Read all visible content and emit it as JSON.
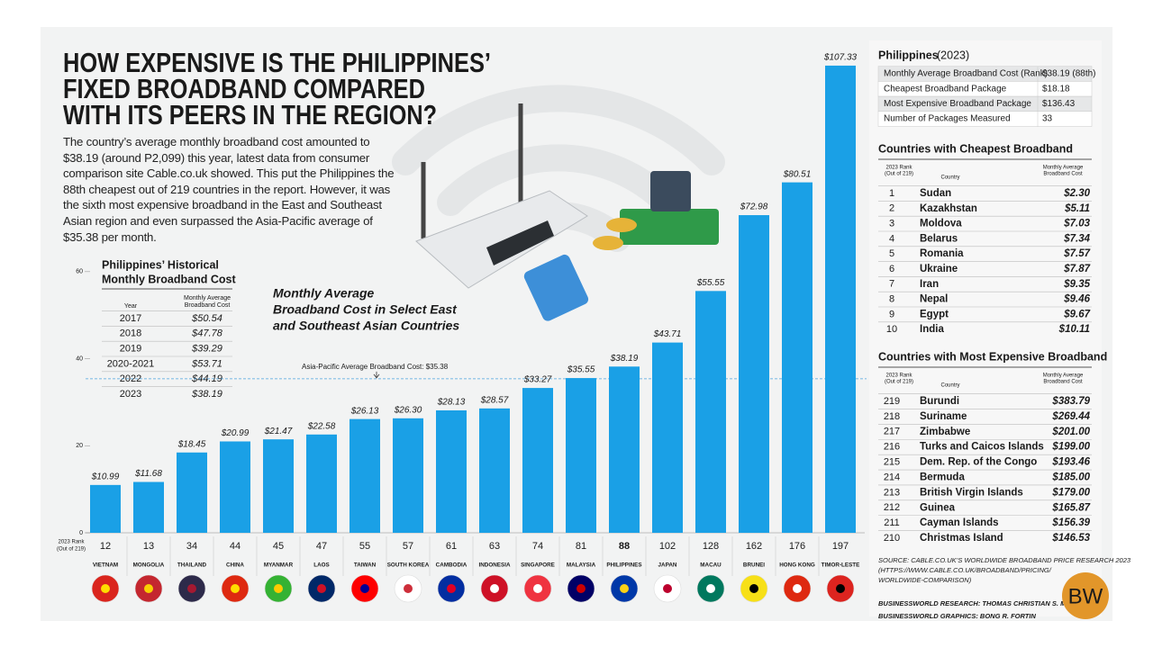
{
  "header": {
    "title": [
      "HOW EXPENSIVE IS THE PHILIPPINES’",
      "FIXED BROADBAND COMPARED",
      "WITH ITS PEERS IN THE REGION?"
    ],
    "description": "The country’s average monthly broadband cost amounted to $38.19 (around P2,099) this year, latest data from consumer comparison site Cable.co.uk showed. This put the Philippines the 88th cheapest out of 219 countries in the report. However, it was the sixth most expensive broadband in the East and Southeast Asian region and even surpassed the Asia-Pacific average of $35.38 per month."
  },
  "history_table": {
    "title": [
      "Philippines’ Historical",
      "Monthly Broadband Cost"
    ],
    "columns": [
      [
        "Year"
      ],
      [
        "Monthly Average",
        "Broadband Cost"
      ]
    ],
    "rows": [
      [
        "2017",
        "$50.54"
      ],
      [
        "2018",
        "$47.78"
      ],
      [
        "2019",
        "$39.29"
      ],
      [
        "2020-2021",
        "$53.71"
      ],
      [
        "2022",
        "$44.19"
      ],
      [
        "2023",
        "$38.19"
      ]
    ]
  },
  "chart_data": {
    "type": "bar",
    "title": [
      "Monthly Average",
      "Broadband Cost in Select East",
      "and Southeast Asian Countries"
    ],
    "categories": [
      "VIETNAM",
      "MONGOLIA",
      "THAILAND",
      "CHINA",
      "MYANMAR",
      "LAOS",
      "TAIWAN",
      "SOUTH KOREA",
      "CAMBODIA",
      "INDONESIA",
      "SINGAPORE",
      "MALAYSIA",
      "PHILIPPINES",
      "JAPAN",
      "MACAU",
      "BRUNEI",
      "HONG KONG",
      "TIMOR-LESTE"
    ],
    "values": [
      10.99,
      11.68,
      18.45,
      20.99,
      21.47,
      22.58,
      26.13,
      26.3,
      28.13,
      28.57,
      33.27,
      35.55,
      38.19,
      43.71,
      55.55,
      72.98,
      80.51,
      107.33
    ],
    "value_labels": [
      "$10.99",
      "$11.68",
      "$18.45",
      "$20.99",
      "$21.47",
      "$22.58",
      "$26.13",
      "$26.30",
      "$28.13",
      "$28.57",
      "$33.27",
      "$35.55",
      "$38.19",
      "$43.71",
      "$55.55",
      "$72.98",
      "$80.51",
      "$107.33"
    ],
    "ranks": [
      12,
      13,
      34,
      44,
      45,
      47,
      55,
      57,
      61,
      63,
      74,
      81,
      88,
      102,
      128,
      162,
      176,
      197
    ],
    "rank_label": [
      "2023 Rank",
      "(Out of 219)"
    ],
    "color": "#1aa0e6",
    "highlight": "PHILIPPINES",
    "highlight_color": "#1a8fe0",
    "ylim": [
      0,
      110
    ],
    "yticks": [
      0,
      20,
      40,
      60
    ],
    "grid": false,
    "reference": {
      "label": "Asia-Pacific Average Broadband Cost: $35.38",
      "value": 35.38
    }
  },
  "philippines_table": {
    "title": "Philippines",
    "subtitle": "(2023)",
    "rows": [
      [
        "Monthly Average Broadband Cost (Rank)",
        "$38.19 (88th)"
      ],
      [
        "Cheapest Broadband Package",
        "$18.18"
      ],
      [
        "Most Expensive Broadband Package",
        "$136.43"
      ],
      [
        "Number of Packages Measured",
        "33"
      ]
    ]
  },
  "cheapest_table": {
    "title": "Countries with Cheapest Broadband",
    "columns": [
      [
        "2023 Rank",
        "(Out of 219)"
      ],
      [
        "Country"
      ],
      [
        "Monthly Average",
        "Broadband Cost"
      ]
    ],
    "rows": [
      [
        "1",
        "Sudan",
        "$2.30"
      ],
      [
        "2",
        "Kazakhstan",
        "$5.11"
      ],
      [
        "3",
        "Moldova",
        "$7.03"
      ],
      [
        "4",
        "Belarus",
        "$7.34"
      ],
      [
        "5",
        "Romania",
        "$7.57"
      ],
      [
        "6",
        "Ukraine",
        "$7.87"
      ],
      [
        "7",
        "Iran",
        "$9.35"
      ],
      [
        "8",
        "Nepal",
        "$9.46"
      ],
      [
        "9",
        "Egypt",
        "$9.67"
      ],
      [
        "10",
        "India",
        "$10.11"
      ]
    ]
  },
  "expensive_table": {
    "title": "Countries with Most Expensive Broadband",
    "columns": [
      [
        "2023 Rank",
        "(Out of 219)"
      ],
      [
        "Country"
      ],
      [
        "Monthly Average",
        "Broadband Cost"
      ]
    ],
    "rows": [
      [
        "219",
        "Burundi",
        "$383.79"
      ],
      [
        "218",
        "Suriname",
        "$269.44"
      ],
      [
        "217",
        "Zimbabwe",
        "$201.00"
      ],
      [
        "216",
        "Turks and Caicos Islands",
        "$199.00"
      ],
      [
        "215",
        "Dem. Rep. of the Congo",
        "$193.46"
      ],
      [
        "214",
        "Bermuda",
        "$185.00"
      ],
      [
        "213",
        "British Virgin Islands",
        "$179.00"
      ],
      [
        "212",
        "Guinea",
        "$165.87"
      ],
      [
        "211",
        "Cayman Islands",
        "$156.39"
      ],
      [
        "210",
        "Christmas Island",
        "$146.53"
      ]
    ]
  },
  "footer": {
    "source": [
      "SOURCE: CABLE.CO.UK’S WORLDWIDE BROADBAND PRICE RESEARCH 2023",
      "(HTTPS://WWW.CABLE.CO.UK/BROADBAND/PRICING/",
      "WORLDWIDE-COMPARISON)"
    ],
    "research": "BUSINESSWORLD RESEARCH: THOMAS CHRISTIAN S. MIGRIÑO",
    "graphics": "BUSINESSWORLD GRAPHICS: BONG R. FORTIN",
    "logo": "BW"
  }
}
